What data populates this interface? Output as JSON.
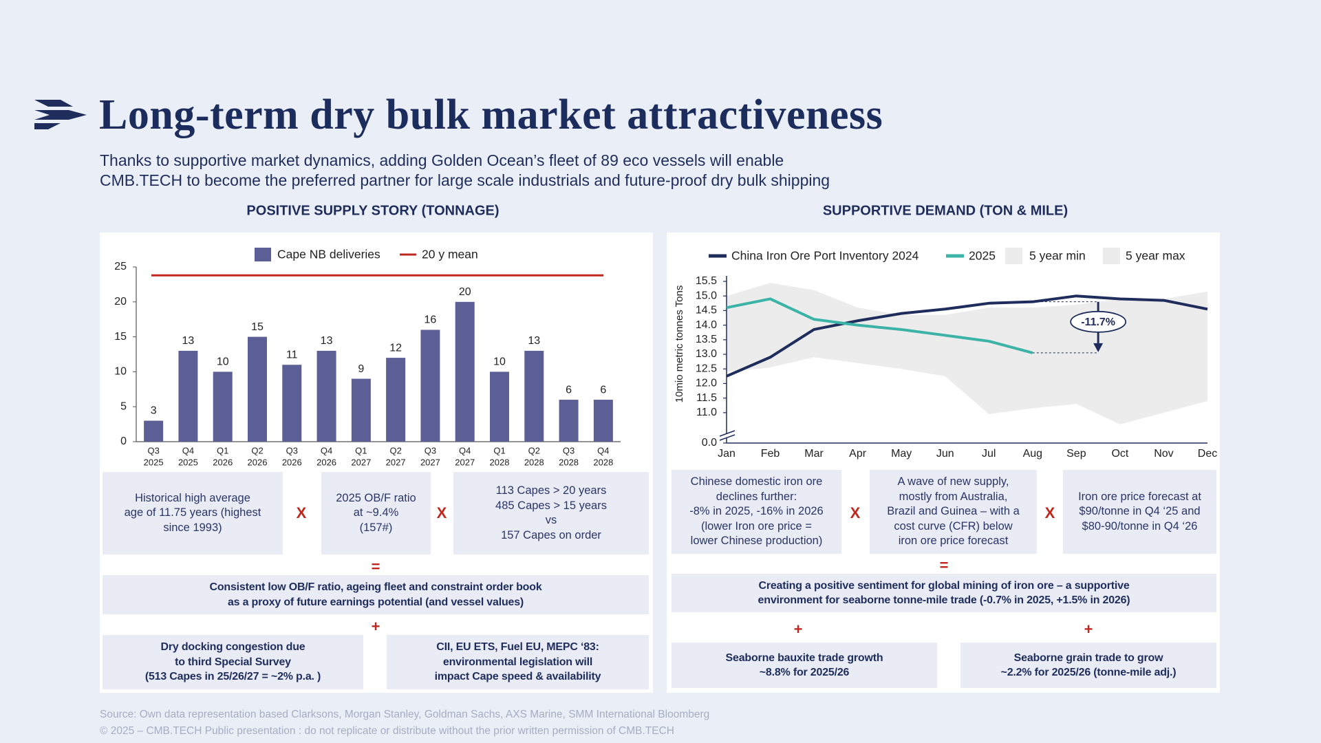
{
  "title": "Long-term dry bulk market attractiveness",
  "subtitle": [
    "Thanks to supportive market dynamics, adding Golden Ocean’s fleet of 89 eco vessels will enable",
    "CMB.TECH to become the preferred partner for large scale industrials and future-proof dry bulk shipping"
  ],
  "chart_data": [
    {
      "type": "bar",
      "title": "POSITIVE SUPPLY STORY (TONNAGE)",
      "categories": [
        [
          "Q3",
          "2025"
        ],
        [
          "Q4",
          "2025"
        ],
        [
          "Q1",
          "2026"
        ],
        [
          "Q2",
          "2026"
        ],
        [
          "Q3",
          "2026"
        ],
        [
          "Q4",
          "2026"
        ],
        [
          "Q1",
          "2027"
        ],
        [
          "Q2",
          "2027"
        ],
        [
          "Q3",
          "2027"
        ],
        [
          "Q4",
          "2027"
        ],
        [
          "Q1",
          "2028"
        ],
        [
          "Q2",
          "2028"
        ],
        [
          "Q3",
          "2028"
        ],
        [
          "Q4",
          "2028"
        ]
      ],
      "series": [
        {
          "name": "Cape NB deliveries",
          "color": "#5b5f96",
          "values": [
            3,
            13,
            10,
            15,
            11,
            13,
            9,
            12,
            16,
            20,
            10,
            13,
            6,
            6
          ]
        }
      ],
      "reference_lines": [
        {
          "name": "20 y mean",
          "color": "#c0271e",
          "value": 23.8
        }
      ],
      "ylim": [
        0,
        25
      ],
      "yticks": [
        0,
        5,
        10,
        15,
        20,
        25
      ]
    },
    {
      "type": "line",
      "title": "SUPPORTIVE DEMAND (TON & MILE)",
      "ylabel": "10mio  metric tonnes Tons",
      "categories": [
        "Jan",
        "Feb",
        "Mar",
        "Apr",
        "May",
        "Jun",
        "Jul",
        "Aug",
        "Sep",
        "Oct",
        "Nov",
        "Dec"
      ],
      "series": [
        {
          "name": "China Iron Ore Port Inventory 2024",
          "color": "#1f2d5c",
          "values": [
            12.25,
            12.9,
            13.85,
            14.15,
            14.4,
            14.55,
            14.75,
            14.8,
            15.0,
            14.9,
            14.85,
            14.55
          ]
        },
        {
          "name": "2025",
          "color": "#3bb3a6",
          "values": [
            14.6,
            14.9,
            14.2,
            14.0,
            13.85,
            13.65,
            13.45,
            13.05,
            null,
            null,
            null,
            null
          ]
        },
        {
          "name": "5 year min",
          "color": "#ececec",
          "kind": "band",
          "values": [
            12.4,
            12.55,
            12.9,
            12.7,
            12.5,
            12.25,
            10.95,
            11.15,
            11.3,
            10.6,
            11.0,
            11.4
          ]
        },
        {
          "name": "5 year max",
          "color": "#ececec",
          "kind": "band",
          "values": [
            15.0,
            15.45,
            15.2,
            14.6,
            14.35,
            14.35,
            14.6,
            14.6,
            14.7,
            14.9,
            14.9,
            15.15
          ]
        }
      ],
      "annotation": {
        "text": "-11.7%"
      },
      "ylim": [
        0,
        15.5
      ],
      "axis_break": [
        0,
        10.1
      ],
      "yticks": [
        {
          "value": 0,
          "label": "0.0"
        },
        {
          "value": 11,
          "label": "11.0"
        },
        11.5,
        {
          "value": 12,
          "label": "12.0"
        },
        12.5,
        {
          "value": 13,
          "label": "13.0"
        },
        13.5,
        {
          "value": 14,
          "label": "14.0"
        },
        14.5,
        {
          "value": 15,
          "label": "15.0"
        },
        15.5
      ]
    }
  ],
  "panels": [
    {
      "boxes": [
        [
          "Historical high average",
          "age of 11.75 years (highest",
          "since 1993)"
        ],
        [
          "2025 OB/F ratio",
          "at ~9.4%",
          "(157#)"
        ],
        [
          "113 Capes > 20 years",
          "485 Capes > 15 years",
          "vs",
          "157 Capes on order"
        ]
      ],
      "operators": [
        "X",
        "X",
        "=",
        "+"
      ],
      "result": [
        "Consistent low OB/F ratio, ageing fleet and constraint order book",
        "as a proxy of future earnings potential (and vessel values)"
      ],
      "extras": [
        [
          "Dry docking congestion due",
          "to third Special Survey",
          "(513 Capes in 25/26/27 = ~2% p.a. )"
        ],
        [
          "CII, EU ETS, Fuel EU, MEPC ‘83:",
          "environmental legislation will",
          "impact Cape speed & availability"
        ]
      ]
    },
    {
      "boxes": [
        [
          "Chinese domestic iron ore",
          "declines further:",
          "-8% in 2025, -16% in 2026",
          "(lower Iron ore price =",
          "lower Chinese production)"
        ],
        [
          "A wave of new supply,",
          "mostly from Australia,",
          "Brazil and Guinea – with a",
          "cost curve (CFR) below",
          "iron ore price forecast"
        ],
        [
          "Iron ore price forecast at",
          "$90/tonne in Q4 ‘25 and",
          "$80-90/tonne in Q4 ‘26"
        ]
      ],
      "operators": [
        "X",
        "X",
        "=",
        "+",
        "+"
      ],
      "result": [
        "Creating a positive sentiment for global mining of iron ore – a supportive",
        "environment for seaborne tonne-mile trade (-0.7% in 2025, +1.5% in 2026)"
      ],
      "extras": [
        [
          "Seaborne bauxite trade growth",
          "~8.8% for 2025/26"
        ],
        [
          "Seaborne grain trade to grow",
          "~2.2% for 2025/26 (tonne-mile adj.)"
        ]
      ]
    }
  ],
  "footer": [
    "Source:  Own data representation based Clarksons, Morgan Stanley, Goldman Sachs, AXS Marine, SMM International Bloomberg",
    "© 2025 – CMB.TECH Public presentation : do not replicate or distribute without the prior written permission of CMB.TECH"
  ]
}
